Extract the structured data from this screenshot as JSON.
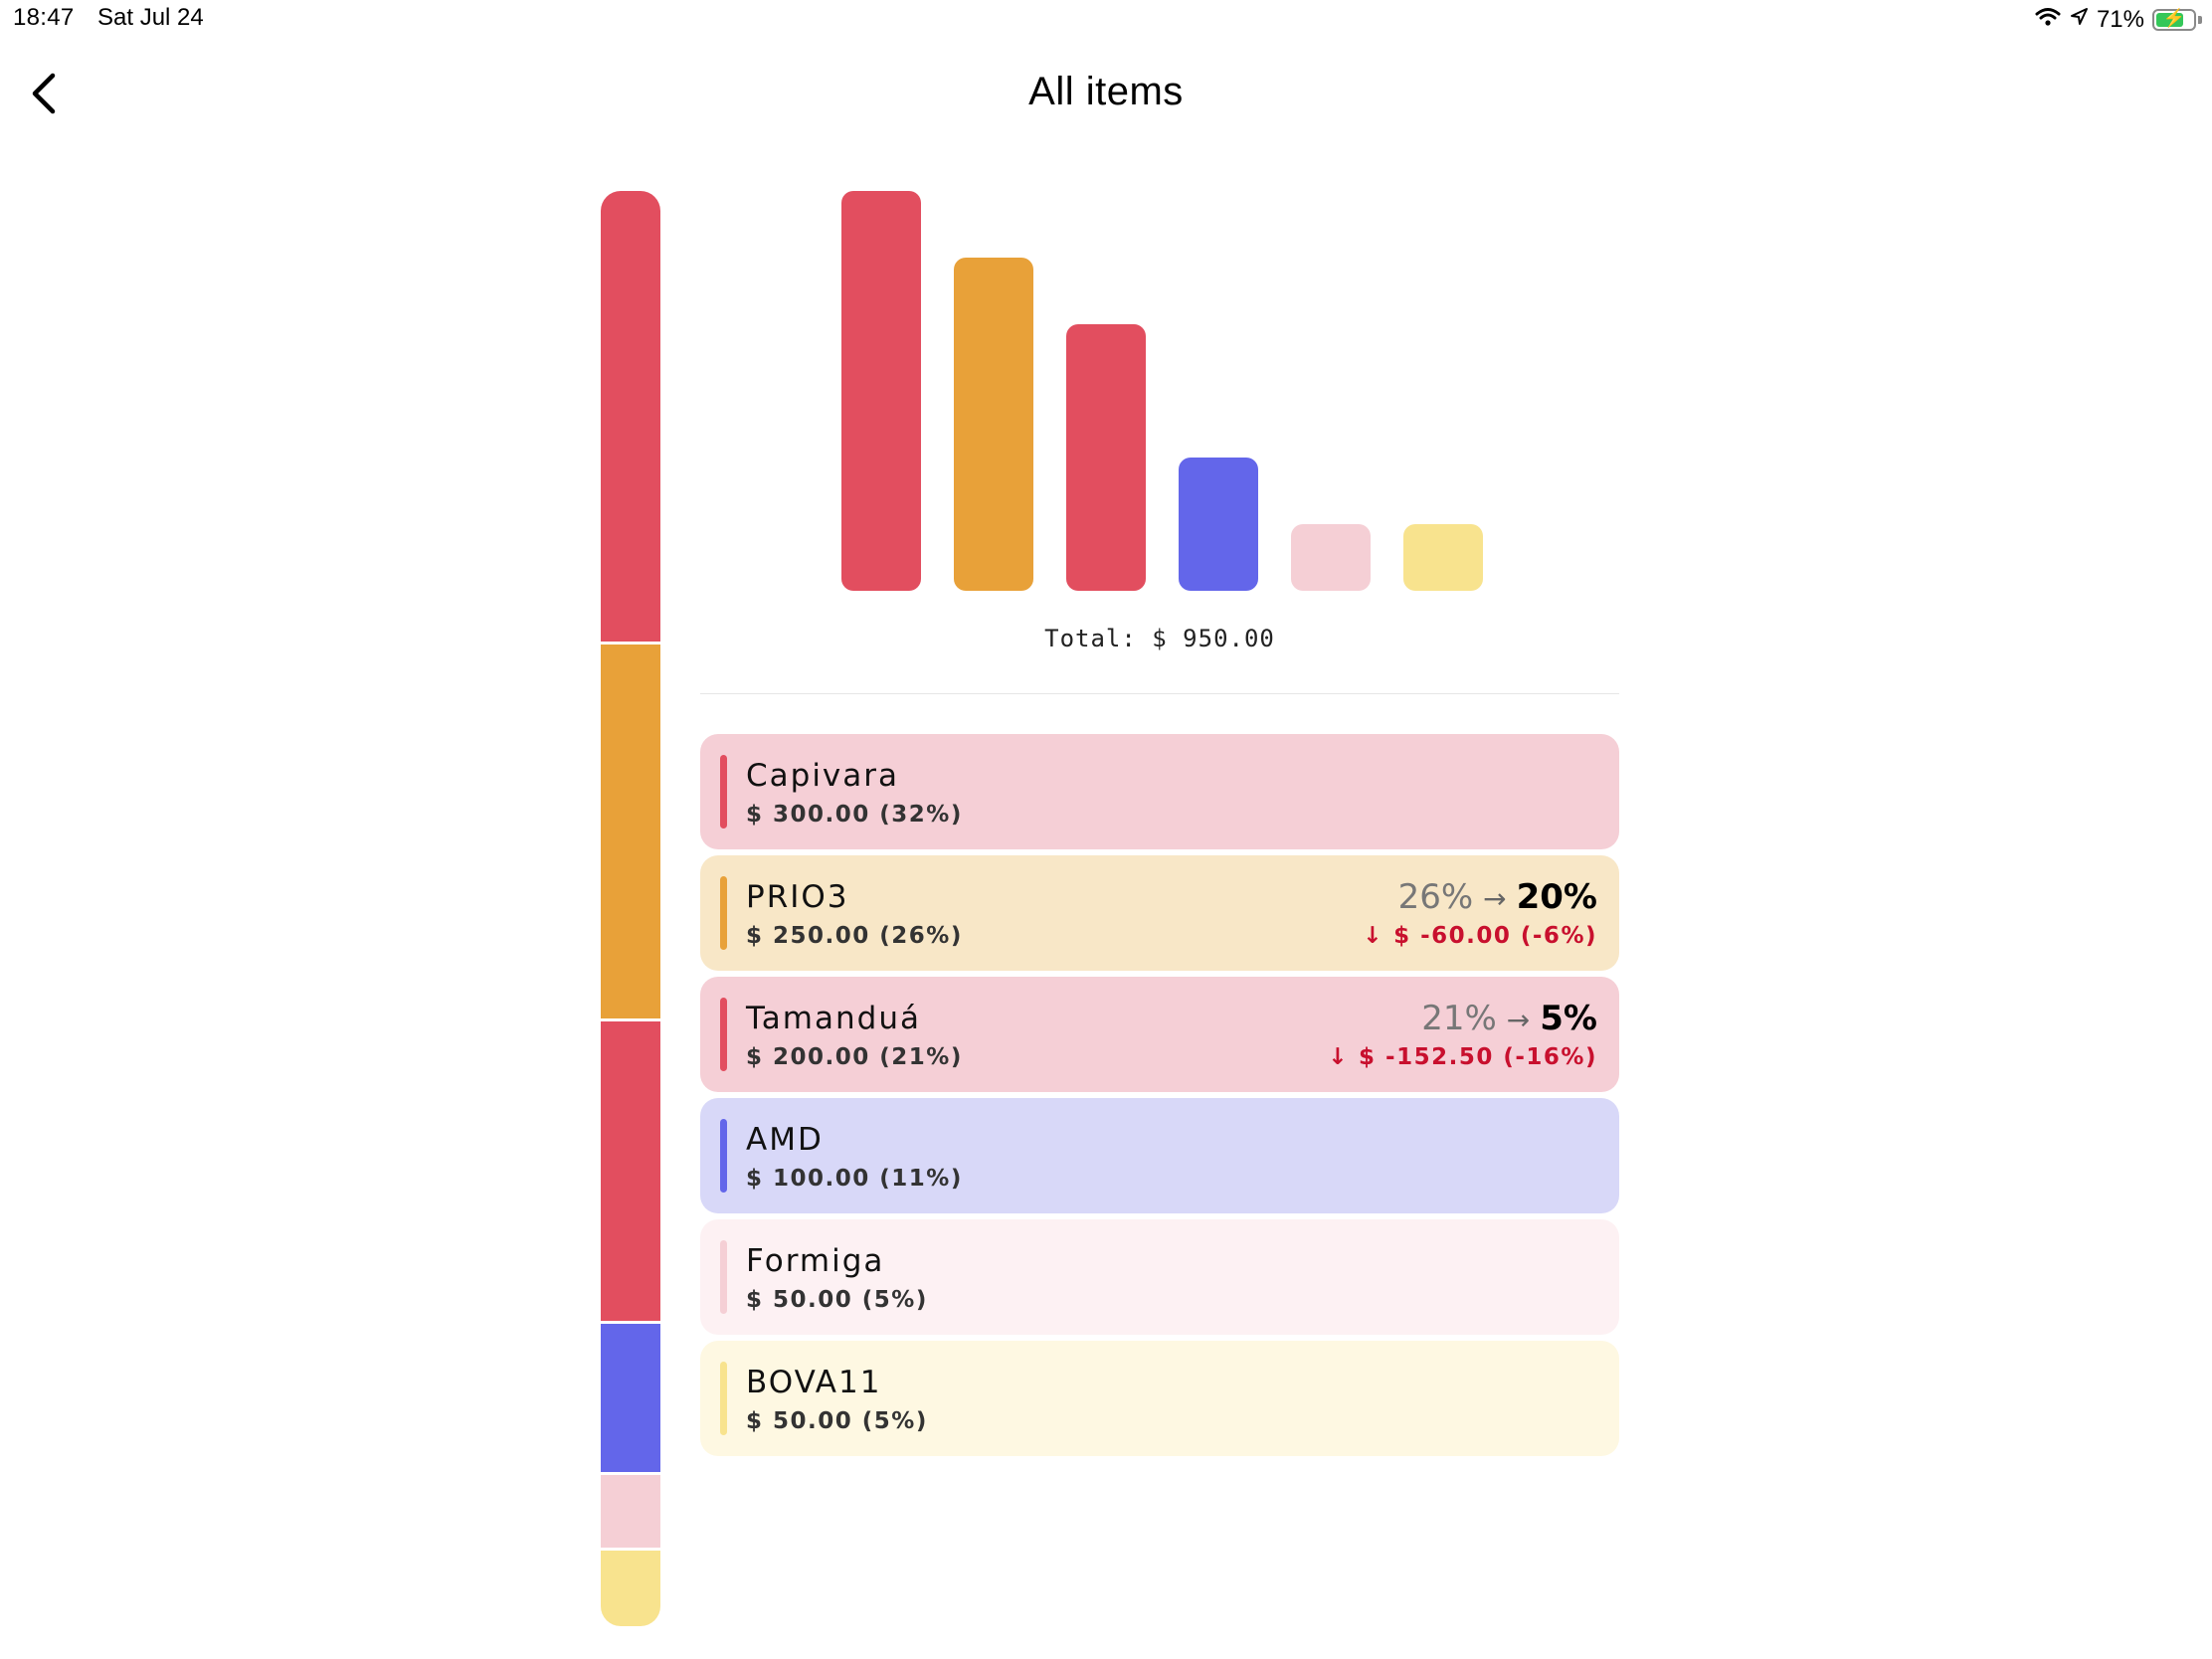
{
  "status": {
    "time": "18:47",
    "date": "Sat Jul 24",
    "battery": "71%",
    "battery_level": 0.71
  },
  "header": {
    "title": "All items",
    "back_icon": "chevron-left-icon"
  },
  "colors": {
    "red": "#e24e5f",
    "orange": "#e8a139",
    "blue": "#6366ea",
    "pink": "#f5cfd5",
    "yellow": "#f8e38e",
    "delta_negative": "#c8102e"
  },
  "chart_data": {
    "type": "bar",
    "categories": [
      "Capivara",
      "PRIO3",
      "Tamanduá",
      "AMD",
      "Formiga",
      "BOVA11"
    ],
    "values": [
      300,
      250,
      200,
      100,
      50,
      50
    ],
    "colors": [
      "#e24e5f",
      "#e8a139",
      "#e24e5f",
      "#6366ea",
      "#f5cfd5",
      "#f8e38e"
    ],
    "total_label": "Total: $ 950.00"
  },
  "items": [
    {
      "name": "Capivara",
      "value": "$ 300.00 (32%)",
      "color": "#e24e5f",
      "bg": "#f5cfd6"
    },
    {
      "name": "PRIO3",
      "value": "$ 250.00 (26%)",
      "color": "#e8a139",
      "bg": "#f8e7c7",
      "from": "26%",
      "to": "20%",
      "delta": "$ -60.00 (-6%)"
    },
    {
      "name": "Tamanduá",
      "value": "$ 200.00 (21%)",
      "color": "#e24e5f",
      "bg": "#f5cfd6",
      "from": "21%",
      "to": "5%",
      "delta": "$ -152.50 (-16%)"
    },
    {
      "name": "AMD",
      "value": "$ 100.00 (11%)",
      "color": "#6366ea",
      "bg": "#d8d8f8"
    },
    {
      "name": "Formiga",
      "value": "$ 50.00 (5%)",
      "color": "#f5cfd5",
      "bg": "#fdf1f3"
    },
    {
      "name": "BOVA11",
      "value": "$ 50.00 (5%)",
      "color": "#f8e38e",
      "bg": "#fef8e2"
    }
  ]
}
